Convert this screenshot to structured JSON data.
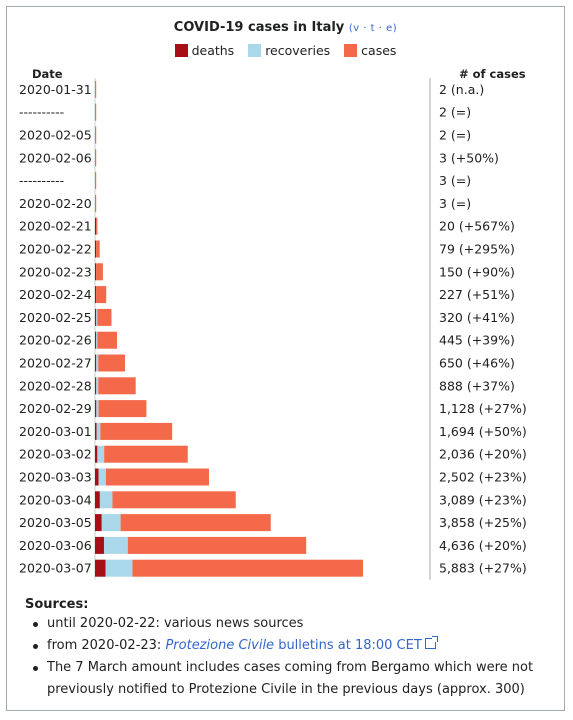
{
  "header": {
    "title": "COVID-19 cases in Italy",
    "vte": "(v · t · e)",
    "col_date": "Date",
    "col_cases": "# of cases"
  },
  "legend": [
    {
      "label": "deaths",
      "color": "#a50f15"
    },
    {
      "label": "recoveries",
      "color": "#a8d8ea"
    },
    {
      "label": "cases",
      "color": "#f4694a"
    }
  ],
  "chart_data": {
    "type": "bar",
    "orientation": "horizontal",
    "stacked": true,
    "categories": [
      "2020-01-31",
      "----------",
      "2020-02-05",
      "2020-02-06",
      "----------",
      "2020-02-20",
      "2020-02-21",
      "2020-02-22",
      "2020-02-23",
      "2020-02-24",
      "2020-02-25",
      "2020-02-26",
      "2020-02-27",
      "2020-02-28",
      "2020-02-29",
      "2020-03-01",
      "2020-03-02",
      "2020-03-03",
      "2020-03-04",
      "2020-03-05",
      "2020-03-06",
      "2020-03-07"
    ],
    "series": [
      {
        "name": "deaths",
        "color": "#a50f15",
        "values": [
          0,
          0,
          0,
          0,
          0,
          0,
          1,
          2,
          3,
          7,
          10,
          12,
          17,
          21,
          29,
          34,
          52,
          79,
          107,
          148,
          197,
          233
        ]
      },
      {
        "name": "recoveries",
        "color": "#a8d8ea",
        "values": [
          0,
          0,
          0,
          0,
          0,
          0,
          0,
          0,
          0,
          0,
          1,
          3,
          45,
          46,
          50,
          83,
          149,
          160,
          276,
          414,
          523,
          589
        ]
      },
      {
        "name": "cases",
        "color": "#f4694a",
        "values": [
          2,
          2,
          2,
          3,
          3,
          3,
          19,
          77,
          147,
          220,
          309,
          430,
          588,
          821,
          1049,
          1577,
          1835,
          2263,
          2706,
          3296,
          3916,
          5061
        ]
      }
    ],
    "totals": [
      2,
      2,
      2,
      3,
      3,
      3,
      20,
      79,
      150,
      227,
      320,
      445,
      650,
      888,
      1128,
      1694,
      2036,
      2502,
      3089,
      3858,
      4636,
      5883
    ],
    "labels": [
      "2 (n.a.)",
      "2 (=)",
      "2 (=)",
      "3 (+50%)",
      "3 (=)",
      "3 (=)",
      "20 (+567%)",
      "79 (+295%)",
      "150 (+90%)",
      "227 (+51%)",
      "320 (+41%)",
      "445 (+39%)",
      "650 (+46%)",
      "888 (+37%)",
      "1,128 (+27%)",
      "1,694 (+50%)",
      "2,036 (+20%)",
      "2,502 (+23%)",
      "3,089 (+23%)",
      "3,858 (+25%)",
      "4,636 (+20%)",
      "5,883 (+27%)"
    ],
    "xlim": [
      0,
      5883
    ]
  },
  "sources": {
    "title": "Sources:",
    "items": [
      {
        "text": "until 2020-02-22: various news sources"
      },
      {
        "prefix": "from 2020-02-23: ",
        "link_italic": "Protezione Civile",
        "link_rest": " bulletins at 18:00 CET"
      },
      {
        "text": "The 7 March amount includes cases coming from Bergamo which were not previously notified to Protezione Civile in the previous days (approx. 300)"
      }
    ]
  }
}
